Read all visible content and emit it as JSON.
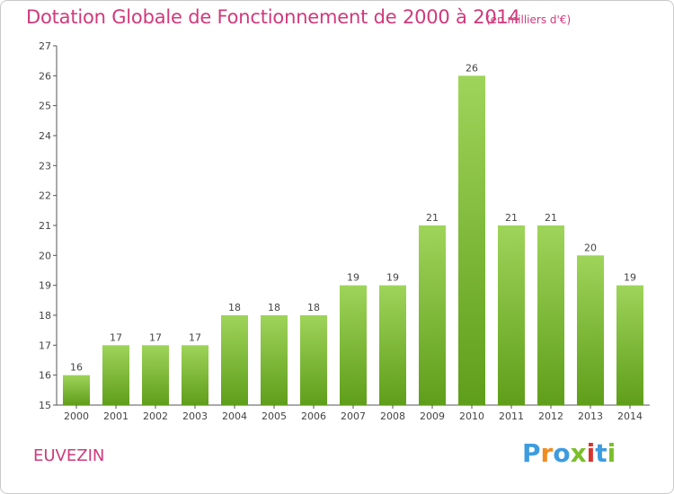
{
  "title": "Dotation Globale de Fonctionnement de 2000 à 2014",
  "subtitle": "(en milliers d'€)",
  "commune": "EUVEZIN",
  "logo": [
    "P",
    "r",
    "o",
    "x",
    "i",
    "t",
    "i"
  ],
  "colors": {
    "title": "#d1397a",
    "bar_top": "#9fd45a",
    "bar_bottom": "#5f9e1a",
    "axis": "#555555"
  },
  "chart_data": {
    "type": "bar",
    "categories": [
      "2000",
      "2001",
      "2002",
      "2003",
      "2004",
      "2005",
      "2006",
      "2007",
      "2008",
      "2009",
      "2010",
      "2011",
      "2012",
      "2013",
      "2014"
    ],
    "values": [
      16,
      17,
      17,
      17,
      18,
      18,
      18,
      19,
      19,
      21,
      26,
      21,
      21,
      20,
      19
    ],
    "ylim": [
      15,
      27
    ],
    "yticks": [
      15,
      16,
      17,
      18,
      19,
      20,
      21,
      22,
      23,
      24,
      25,
      26,
      27
    ],
    "title": "Dotation Globale de Fonctionnement de 2000 à 2014",
    "xlabel": "",
    "ylabel": "",
    "grid": false,
    "legend": "none"
  }
}
